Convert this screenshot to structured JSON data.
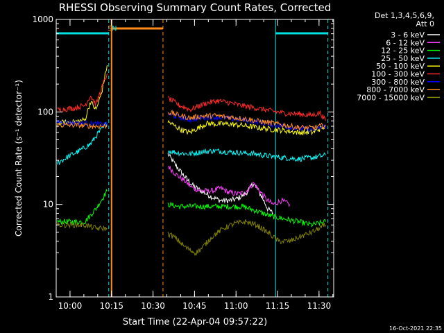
{
  "chart_data": {
    "type": "line",
    "title": "RHESSI Observing Summary Count Rates, Corrected",
    "xlabel": "Start Time (22-Apr-04 09:57:22)",
    "ylabel": "Corrected Count Rate (s⁻¹ detector⁻¹)",
    "y_scale": "log",
    "ylim": [
      1,
      1000
    ],
    "xlim_minutes_after_start": [
      -2.4,
      97.9
    ],
    "y_ticks": [
      1,
      10,
      100,
      1000
    ],
    "y_tick_labels": [
      "1",
      "10",
      "100",
      "1000"
    ],
    "x_ticks": [
      "10:00",
      "10:15",
      "10:30",
      "10:45",
      "11:00",
      "11:15",
      "11:30"
    ],
    "x_tick_minutes": [
      2.6,
      17.6,
      32.6,
      47.6,
      62.6,
      77.6,
      92.6
    ],
    "legend_header": [
      "Det 1,3,4,5,6,9,",
      "Att 0"
    ],
    "legend_placement": "right",
    "timestamp": "16-Oct-2021 22:35",
    "annotations": [
      {
        "text": "S",
        "x": 17.0,
        "color": "#ff8c1a"
      },
      {
        "text": "N",
        "x": 18.6,
        "color": "#00e0e0"
      }
    ],
    "markers": {
      "saa": {
        "color": "#ff8c1a",
        "start": 17.6,
        "end": 36.2
      },
      "night": [
        {
          "color": "#00e0e0",
          "start": -2.4,
          "end": 16.6
        },
        {
          "color": "#00e0e0",
          "start": 76.9,
          "end": 95.8
        }
      ]
    },
    "gaps": [
      [
        16.6,
        38.0
      ]
    ],
    "series": [
      {
        "name": "3 - 6 keV",
        "color": "#ffffff",
        "x": [
          38,
          41,
          44,
          47,
          50,
          54,
          57,
          60,
          63,
          66,
          69,
          72,
          74,
          76
        ],
        "y": [
          35,
          26,
          20,
          16,
          14,
          12,
          11,
          11,
          11.5,
          13,
          17,
          12,
          9,
          8
        ]
      },
      {
        "name": "6 - 12 keV",
        "color": "#ff40ff",
        "x": [
          38,
          41,
          44,
          47,
          50,
          54,
          57,
          60,
          63,
          66,
          69,
          72,
          74,
          76,
          79,
          82
        ],
        "y": [
          26,
          21,
          18,
          15,
          14,
          14,
          15,
          13.5,
          13,
          13.5,
          17,
          13,
          11,
          10,
          11,
          10
        ]
      },
      {
        "name": "12 - 25 keV",
        "color": "#00ff00",
        "x": [
          -2,
          3,
          8,
          12,
          16,
          38,
          42,
          46,
          50,
          55,
          60,
          65,
          70,
          75,
          80,
          85,
          90,
          95
        ],
        "y": [
          6.5,
          6.5,
          6.5,
          9,
          14,
          10,
          9.5,
          9.5,
          9.5,
          9.5,
          9.5,
          9.5,
          8.5,
          7.5,
          7,
          6.5,
          6,
          6.5
        ]
      },
      {
        "name": "25 - 50 keV",
        "color": "#00ffff",
        "x": [
          -2,
          2,
          6,
          10,
          13,
          16,
          38,
          42,
          46,
          50,
          55,
          60,
          65,
          70,
          75,
          80,
          85,
          90,
          95
        ],
        "y": [
          28,
          33,
          38,
          45,
          60,
          75,
          38,
          36,
          35,
          37,
          38,
          37,
          36,
          35,
          33,
          32,
          31,
          32,
          34
        ]
      },
      {
        "name": "50 - 100 keV",
        "color": "#ffff00",
        "x": [
          -2,
          4,
          8,
          10,
          12,
          14,
          16,
          38,
          40,
          42,
          44,
          46,
          48,
          52,
          56,
          60,
          64,
          70,
          75,
          80,
          85,
          90,
          95
        ],
        "y": [
          76,
          78,
          82,
          130,
          105,
          160,
          320,
          78,
          72,
          66,
          62,
          60,
          65,
          75,
          74,
          74,
          72,
          68,
          65,
          63,
          60,
          60,
          70
        ]
      },
      {
        "name": "100 - 300 keV",
        "color": "#ff2a2a",
        "x": [
          -2,
          4,
          8,
          10,
          12,
          14,
          16,
          38,
          40,
          42,
          44,
          46,
          48,
          52,
          56,
          60,
          64,
          70,
          75,
          80,
          85,
          90,
          93,
          95
        ],
        "y": [
          105,
          110,
          118,
          150,
          120,
          180,
          260,
          140,
          130,
          118,
          112,
          106,
          112,
          125,
          132,
          126,
          118,
          110,
          103,
          97,
          95,
          92,
          98,
          80
        ]
      },
      {
        "name": "300 - 800 keV",
        "color": "#0000ff",
        "x": [
          -2,
          4,
          8,
          12,
          16,
          38,
          42,
          46,
          50,
          55,
          60,
          65,
          70,
          75,
          80,
          85,
          90,
          95
        ],
        "y": [
          78,
          76,
          75,
          74,
          73,
          95,
          88,
          82,
          86,
          88,
          85,
          82,
          78,
          74,
          70,
          66,
          64,
          70
        ]
      },
      {
        "name": "800 - 7000 keV",
        "color": "#ff8c1a",
        "x": [
          -2,
          4,
          8,
          12,
          16,
          38,
          42,
          46,
          50,
          55,
          60,
          65,
          70,
          75,
          80,
          85,
          90,
          95
        ],
        "y": [
          72,
          72,
          71,
          70,
          70,
          100,
          92,
          86,
          90,
          91,
          88,
          85,
          80,
          76,
          72,
          68,
          67,
          72
        ]
      },
      {
        "name": "7000 - 15000 keV",
        "color": "#808000",
        "x": [
          -2,
          4,
          8,
          12,
          16,
          38,
          40,
          42,
          44,
          46,
          48,
          50,
          54,
          58,
          62,
          66,
          70,
          74,
          78,
          82,
          86,
          90,
          95
        ],
        "y": [
          6,
          6,
          6,
          5.5,
          5.5,
          4.8,
          4.5,
          4,
          3.5,
          3.2,
          3,
          3.3,
          4.5,
          5.5,
          6.2,
          6.5,
          6,
          5,
          4,
          4,
          4.5,
          5,
          6
        ]
      }
    ]
  }
}
